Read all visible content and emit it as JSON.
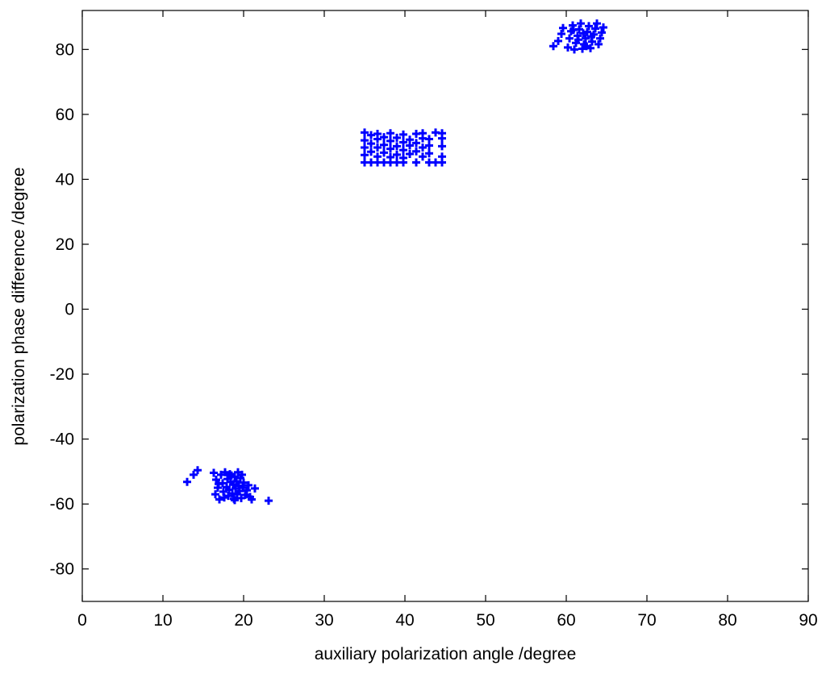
{
  "chart_data": {
    "type": "scatter",
    "title": "",
    "xlabel": "auxiliary polarization angle /degree",
    "ylabel": "polarization phase difference /degree",
    "xlim": [
      0,
      90
    ],
    "ylim": [
      -90,
      92
    ],
    "xticks": [
      0,
      10,
      20,
      30,
      40,
      50,
      60,
      70,
      80,
      90
    ],
    "yticks": [
      -80,
      -60,
      -40,
      -20,
      0,
      20,
      40,
      60,
      80
    ],
    "grid": false,
    "marker": "+",
    "marker_color": "#0000ff",
    "series": [
      {
        "points": [
          [
            13.0,
            -53.2
          ],
          [
            13.8,
            -51.0
          ],
          [
            14.3,
            -49.6
          ],
          [
            16.3,
            -50.4
          ],
          [
            16.6,
            -52.5
          ],
          [
            16.8,
            -55.0
          ],
          [
            16.5,
            -57.0
          ],
          [
            17.0,
            -58.6
          ],
          [
            17.2,
            -51.0
          ],
          [
            17.4,
            -53.6
          ],
          [
            17.5,
            -56.2
          ],
          [
            17.7,
            -50.2
          ],
          [
            17.9,
            -54.8
          ],
          [
            18.0,
            -52.3
          ],
          [
            18.1,
            -57.5
          ],
          [
            18.2,
            -55.6
          ],
          [
            18.3,
            -50.8
          ],
          [
            18.4,
            -53.2
          ],
          [
            18.6,
            -56.8
          ],
          [
            18.7,
            -54.0
          ],
          [
            18.8,
            -58.4
          ],
          [
            18.9,
            -51.6
          ],
          [
            19.0,
            -55.2
          ],
          [
            19.1,
            -53.0
          ],
          [
            19.2,
            -57.0
          ],
          [
            19.3,
            -50.2
          ],
          [
            19.4,
            -54.4
          ],
          [
            19.5,
            -56.0
          ],
          [
            19.6,
            -52.0
          ],
          [
            19.7,
            -58.2
          ],
          [
            19.9,
            -55.0
          ],
          [
            20.0,
            -53.4
          ],
          [
            20.2,
            -57.2
          ],
          [
            20.4,
            -55.8
          ],
          [
            20.6,
            -54.2
          ],
          [
            20.8,
            -57.8
          ],
          [
            21.0,
            -58.6
          ],
          [
            21.4,
            -55.2
          ],
          [
            17.6,
            -58.0
          ],
          [
            18.5,
            -51.2
          ],
          [
            19.8,
            -51.0
          ],
          [
            16.9,
            -53.8
          ],
          [
            18.9,
            -58.8
          ],
          [
            23.1,
            -59.0
          ],
          [
            35.0,
            45.2
          ],
          [
            35.0,
            47.5
          ],
          [
            35.0,
            49.8
          ],
          [
            35.0,
            52.0
          ],
          [
            35.0,
            54.4
          ],
          [
            35.8,
            45.2
          ],
          [
            35.8,
            48.5
          ],
          [
            35.8,
            51.0
          ],
          [
            35.8,
            53.6
          ],
          [
            36.6,
            45.2
          ],
          [
            36.6,
            47.0
          ],
          [
            36.6,
            49.8
          ],
          [
            36.6,
            52.4
          ],
          [
            36.6,
            54.0
          ],
          [
            37.4,
            45.2
          ],
          [
            37.4,
            48.2
          ],
          [
            37.4,
            50.6
          ],
          [
            37.4,
            53.0
          ],
          [
            38.2,
            45.2
          ],
          [
            38.2,
            46.8
          ],
          [
            38.2,
            49.4
          ],
          [
            38.2,
            51.8
          ],
          [
            38.2,
            54.2
          ],
          [
            39.0,
            45.2
          ],
          [
            39.0,
            47.6
          ],
          [
            39.0,
            50.2
          ],
          [
            39.0,
            52.8
          ],
          [
            39.8,
            45.2
          ],
          [
            39.8,
            46.6
          ],
          [
            39.8,
            49.0
          ],
          [
            39.8,
            51.4
          ],
          [
            39.8,
            53.8
          ],
          [
            40.6,
            47.8
          ],
          [
            40.6,
            50.4
          ],
          [
            40.6,
            52.2
          ],
          [
            41.4,
            45.2
          ],
          [
            41.4,
            48.6
          ],
          [
            41.4,
            51.2
          ],
          [
            41.4,
            54.0
          ],
          [
            42.2,
            47.0
          ],
          [
            42.2,
            49.8
          ],
          [
            42.2,
            52.6
          ],
          [
            42.2,
            54.2
          ],
          [
            43.0,
            45.2
          ],
          [
            43.0,
            48.0
          ],
          [
            43.0,
            50.4
          ],
          [
            43.0,
            52.4
          ],
          [
            43.8,
            45.2
          ],
          [
            43.8,
            54.4
          ],
          [
            44.6,
            45.2
          ],
          [
            44.6,
            47.0
          ],
          [
            44.6,
            50.2
          ],
          [
            44.6,
            52.6
          ],
          [
            44.6,
            54.2
          ],
          [
            58.4,
            81.0
          ],
          [
            59.0,
            82.6
          ],
          [
            59.4,
            84.8
          ],
          [
            59.6,
            86.6
          ],
          [
            60.2,
            80.6
          ],
          [
            60.4,
            83.4
          ],
          [
            60.6,
            85.6
          ],
          [
            60.8,
            87.4
          ],
          [
            61.0,
            80.0
          ],
          [
            61.2,
            82.0
          ],
          [
            61.4,
            84.2
          ],
          [
            61.6,
            86.2
          ],
          [
            61.8,
            88.0
          ],
          [
            62.0,
            80.2
          ],
          [
            62.2,
            81.6
          ],
          [
            62.4,
            83.4
          ],
          [
            62.6,
            85.4
          ],
          [
            62.8,
            87.2
          ],
          [
            63.0,
            80.4
          ],
          [
            63.2,
            82.4
          ],
          [
            63.4,
            84.6
          ],
          [
            63.6,
            86.4
          ],
          [
            63.8,
            88.0
          ],
          [
            64.0,
            81.6
          ],
          [
            64.2,
            83.4
          ],
          [
            64.4,
            85.2
          ],
          [
            64.6,
            86.8
          ],
          [
            61.5,
            83.0
          ],
          [
            62.1,
            85.0
          ],
          [
            60.9,
            86.0
          ],
          [
            63.1,
            84.0
          ],
          [
            62.5,
            81.0
          ]
        ]
      }
    ]
  }
}
